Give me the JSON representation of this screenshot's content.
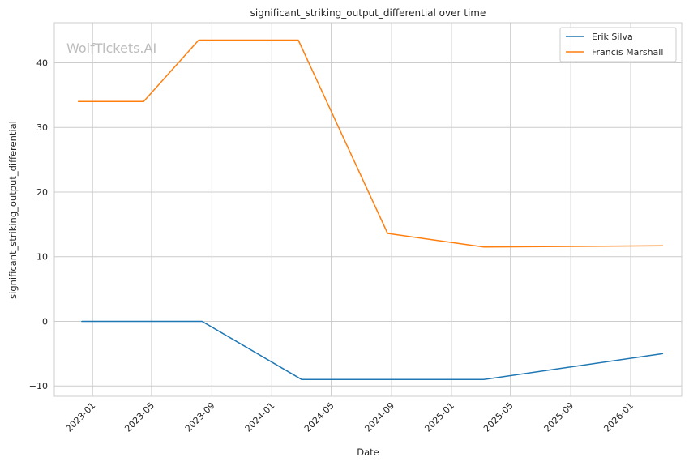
{
  "chart_data": {
    "type": "line",
    "title": "significant_striking_output_differential over time",
    "xlabel": "Date",
    "ylabel": "significant_striking_output_differential",
    "watermark": "WolfTickets.AI",
    "x_type": "date",
    "xlim": [
      "2022-10-15",
      "2026-04-15"
    ],
    "ylim": [
      -11.6,
      46.2
    ],
    "x_ticks": [
      "2023-01",
      "2023-05",
      "2023-09",
      "2024-01",
      "2024-05",
      "2024-09",
      "2025-01",
      "2025-05",
      "2025-09",
      "2026-01"
    ],
    "y_ticks": [
      -10,
      0,
      10,
      20,
      30,
      40
    ],
    "grid": true,
    "legend_position": "top-right",
    "series": [
      {
        "name": "Erik Silva",
        "color": "#1f77b4",
        "points": [
          {
            "x": "2022-12-10",
            "y": 0
          },
          {
            "x": "2023-08-12",
            "y": 0
          },
          {
            "x": "2024-03-02",
            "y": -9
          },
          {
            "x": "2025-03-08",
            "y": -9
          },
          {
            "x": "2026-03-07",
            "y": -5
          }
        ]
      },
      {
        "name": "Francis Marshall",
        "color": "#ff7f0e",
        "points": [
          {
            "x": "2022-12-03",
            "y": 34
          },
          {
            "x": "2023-04-15",
            "y": 34
          },
          {
            "x": "2023-08-05",
            "y": 43.5
          },
          {
            "x": "2024-02-24",
            "y": 43.5
          },
          {
            "x": "2024-08-24",
            "y": 13.6
          },
          {
            "x": "2025-03-08",
            "y": 11.5
          },
          {
            "x": "2026-03-07",
            "y": 11.7
          }
        ]
      }
    ]
  }
}
